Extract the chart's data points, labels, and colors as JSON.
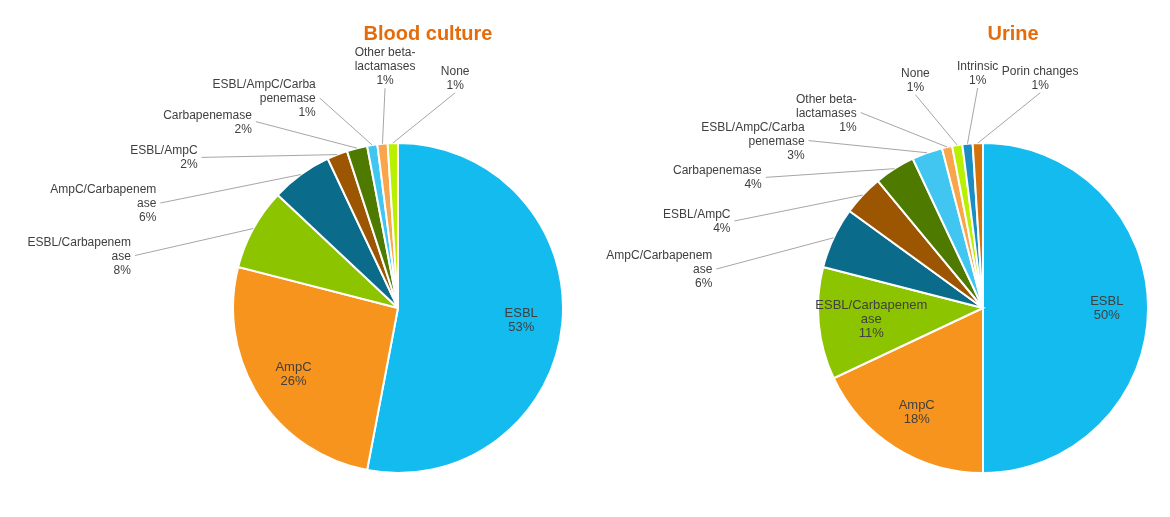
{
  "chart_data": [
    {
      "type": "pie",
      "title": "Blood culture",
      "categories": [
        "ESBL",
        "AmpC",
        "ESBL/Carbapenemase",
        "AmpC/Carbapenemase",
        "ESBL/AmpC",
        "Carbapenemase",
        "ESBL/AmpC/Carbapenemase",
        "Other beta-lactamases",
        "None"
      ],
      "values": [
        53,
        26,
        8,
        6,
        2,
        2,
        1,
        1,
        1
      ],
      "value_labels": [
        "53%",
        "26%",
        "8%",
        "6%",
        "2%",
        "2%",
        "1%",
        "1%",
        "1%"
      ],
      "colors": [
        "#13bbef",
        "#f7941d",
        "#8dc400",
        "#0b6b8a",
        "#9c5500",
        "#4e7a00",
        "#41c6f2",
        "#f8a54c",
        "#b8f000"
      ]
    },
    {
      "type": "pie",
      "title": "Urine",
      "categories": [
        "ESBL",
        "AmpC",
        "ESBL/Carbapenemase",
        "AmpC/Carbapenemase",
        "ESBL/AmpC",
        "Carbapenemase",
        "ESBL/AmpC/Carbapenemase",
        "Other beta-lactamases",
        "None",
        "Intrinsic",
        "Porin changes"
      ],
      "values": [
        50,
        18,
        11,
        6,
        4,
        4,
        3,
        1,
        1,
        1,
        1
      ],
      "value_labels": [
        "50%",
        "18%",
        "11%",
        "6%",
        "4%",
        "4%",
        "3%",
        "1%",
        "1%",
        "1%",
        "1%"
      ],
      "colors": [
        "#13bbef",
        "#f7941d",
        "#8dc400",
        "#0b6b8a",
        "#9c5500",
        "#4e7a00",
        "#41c6f2",
        "#f8a54c",
        "#b8f000",
        "#1a8ec4",
        "#d4720c"
      ]
    }
  ]
}
